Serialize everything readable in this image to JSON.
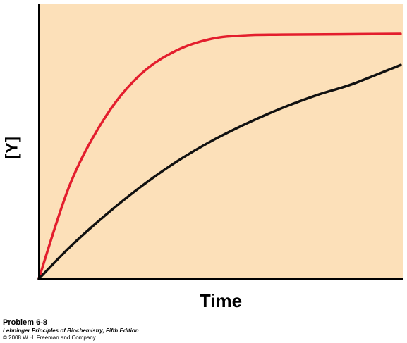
{
  "chart_data": {
    "type": "line",
    "x_label": "Time",
    "y_label": "[Y]",
    "xlim": [
      0,
      100
    ],
    "ylim": [
      0,
      100
    ],
    "background": "#fce0b9",
    "series": [
      {
        "color": "#e31e2d",
        "x": [
          0,
          8.7,
          18.4,
          28.0,
          37.7,
          47.4,
          57.1,
          66.8,
          99.2
        ],
        "values": [
          0,
          34.8,
          59.1,
          74.4,
          82.9,
          87.2,
          88.5,
          88.7,
          89.0
        ]
      },
      {
        "color": "#111111",
        "x": [
          0,
          8.7,
          18.4,
          28.0,
          37.7,
          47.4,
          57.1,
          66.8,
          76.4,
          86.1,
          99.2
        ],
        "values": [
          0,
          11.8,
          23.3,
          33.5,
          42.5,
          50.1,
          56.5,
          62.1,
          66.8,
          70.8,
          77.7
        ]
      }
    ]
  },
  "credits": [
    "Problem 6-8",
    "Lehninger Principles of Biochemistry, Fifth Edition",
    "© 2008 W.H. Freeman and Company"
  ]
}
